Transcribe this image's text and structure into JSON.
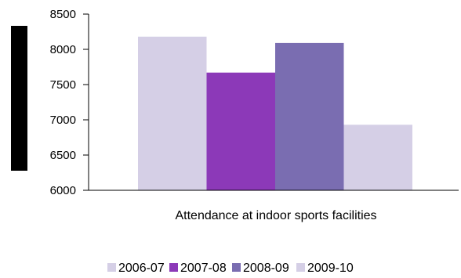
{
  "chart_data": {
    "type": "bar",
    "xlabel": "Attendance at indoor sports facilities",
    "ylabel": "",
    "ylim": [
      6000,
      8500
    ],
    "yticks": [
      6000,
      6500,
      7000,
      7500,
      8000,
      8500
    ],
    "series": [
      {
        "name": "2006-07",
        "values": [
          8180
        ],
        "color": "#d5cfe6"
      },
      {
        "name": "2007-08",
        "values": [
          7670
        ],
        "color": "#8c39b8"
      },
      {
        "name": "2008-09",
        "values": [
          8090
        ],
        "color": "#7a6db1"
      },
      {
        "name": "2009-10",
        "values": [
          6930
        ],
        "color": "#d5cfe6"
      }
    ],
    "legend_position": "bottom",
    "grid": false
  }
}
